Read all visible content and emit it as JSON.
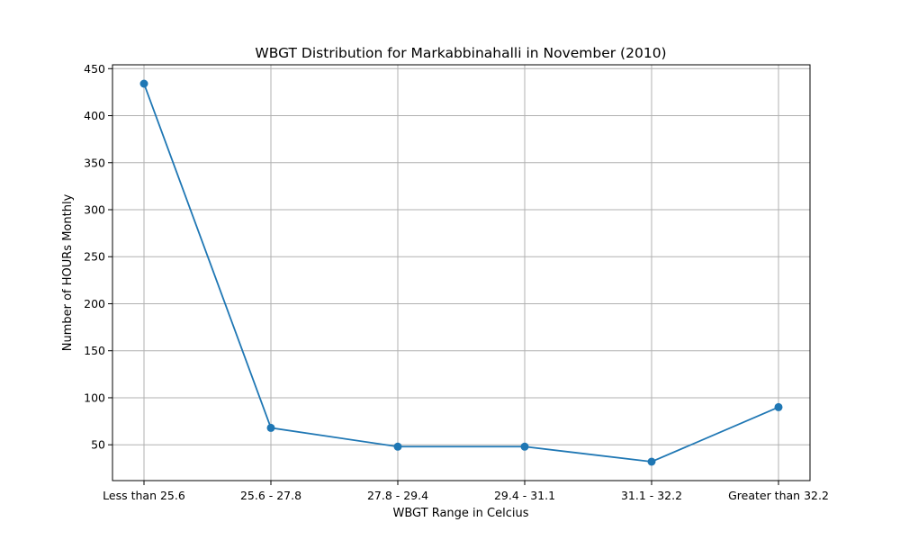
{
  "chart_data": {
    "type": "line",
    "title": "WBGT Distribution for Markabbinahalli in November (2010)",
    "xlabel": "WBGT Range in Celcius",
    "ylabel": "Number of HOURs Monthly",
    "categories": [
      "Less than 25.6",
      "25.6 - 27.8",
      "27.8 - 29.4",
      "29.4 - 31.1",
      "31.1 - 32.2",
      "Greater than 32.2"
    ],
    "series": [
      {
        "values": [
          434,
          68,
          48,
          48,
          32,
          90
        ],
        "color": "#1f77b4",
        "marker": "circle"
      }
    ],
    "ylim": [
      11.9,
      454.1
    ],
    "yticks": [
      50,
      100,
      150,
      200,
      250,
      300,
      350,
      400,
      450
    ],
    "grid": true,
    "legend": "none"
  }
}
